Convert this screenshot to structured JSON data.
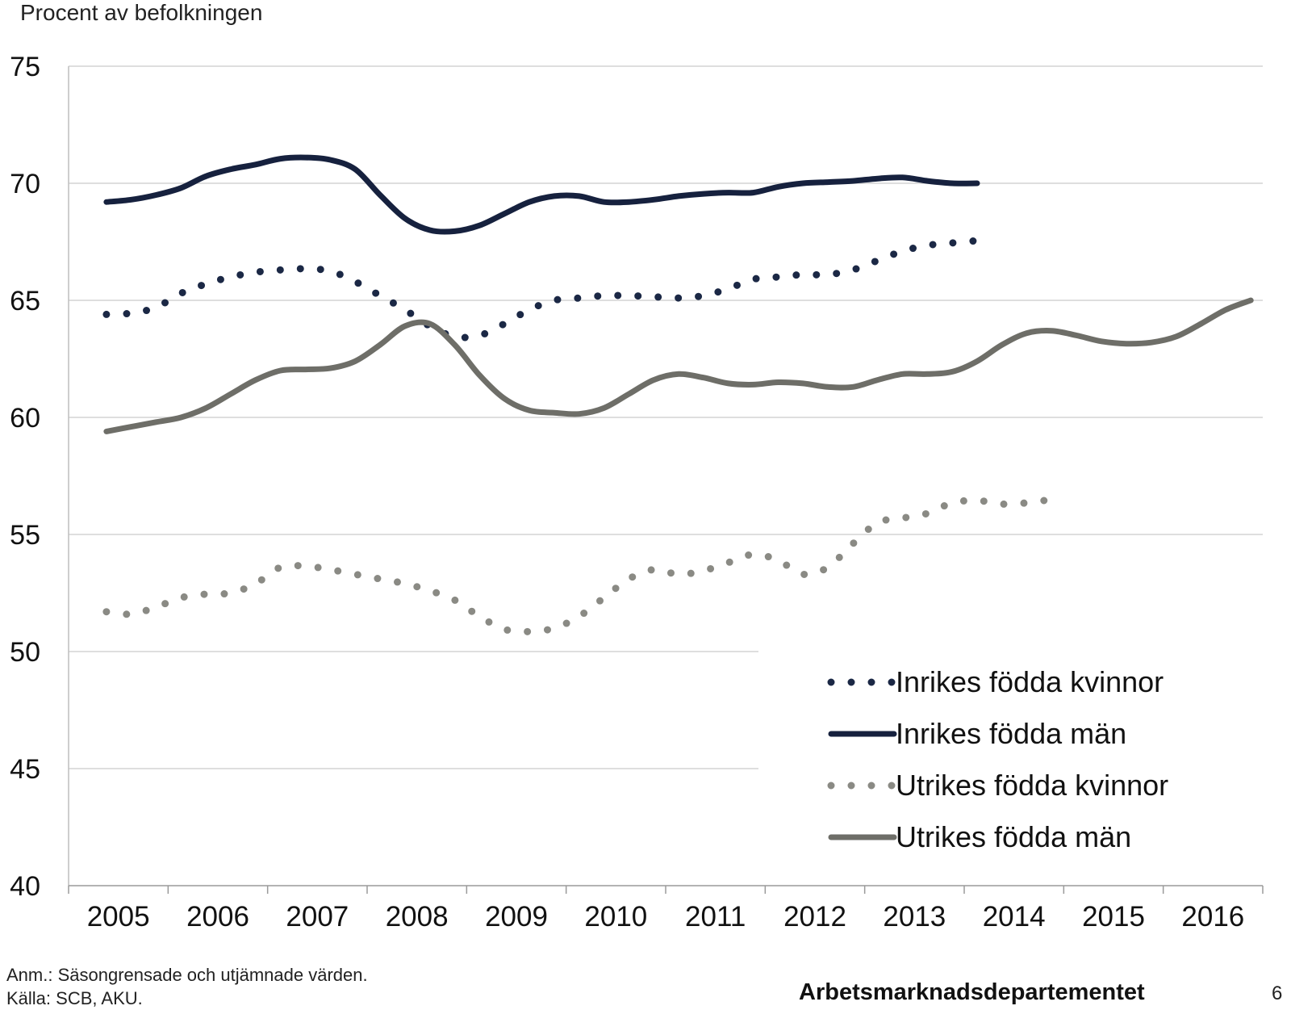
{
  "chart_data": {
    "type": "line",
    "title": "",
    "ylabel": "Procent av befolkningen",
    "xlabel": "",
    "ylim": [
      40,
      75
    ],
    "yticks": [
      40,
      45,
      50,
      55,
      60,
      65,
      70,
      75
    ],
    "xlim": [
      2004.5,
      2016.5
    ],
    "year_labels": [
      "2005",
      "2006",
      "2007",
      "2008",
      "2009",
      "2010",
      "2011",
      "2012",
      "2013",
      "2014",
      "2015",
      "2016"
    ],
    "grid": true,
    "legend_position": "bottom-right",
    "series": [
      {
        "name": "Inrikes födda kvinnor",
        "style": "dotted",
        "color": "#1b2845",
        "points": [
          [
            2004.88,
            64.4
          ],
          [
            2005.13,
            64.45
          ],
          [
            2005.38,
            64.7
          ],
          [
            2005.63,
            65.3
          ],
          [
            2005.88,
            65.7
          ],
          [
            2006.13,
            66.0
          ],
          [
            2006.38,
            66.2
          ],
          [
            2006.63,
            66.3
          ],
          [
            2006.88,
            66.35
          ],
          [
            2007.13,
            66.25
          ],
          [
            2007.38,
            65.8
          ],
          [
            2007.63,
            65.2
          ],
          [
            2007.88,
            64.6
          ],
          [
            2008.13,
            63.9
          ],
          [
            2008.38,
            63.45
          ],
          [
            2008.63,
            63.5
          ],
          [
            2008.88,
            64.0
          ],
          [
            2009.13,
            64.6
          ],
          [
            2009.38,
            65.0
          ],
          [
            2009.63,
            65.1
          ],
          [
            2009.88,
            65.2
          ],
          [
            2010.13,
            65.2
          ],
          [
            2010.38,
            65.15
          ],
          [
            2010.63,
            65.1
          ],
          [
            2010.88,
            65.2
          ],
          [
            2011.13,
            65.5
          ],
          [
            2011.38,
            65.9
          ],
          [
            2011.63,
            66.0
          ],
          [
            2011.88,
            66.1
          ],
          [
            2012.13,
            66.1
          ],
          [
            2012.38,
            66.3
          ],
          [
            2012.63,
            66.7
          ],
          [
            2012.88,
            67.1
          ],
          [
            2013.13,
            67.35
          ],
          [
            2013.38,
            67.45
          ],
          [
            2013.63,
            67.55
          ]
        ]
      },
      {
        "name": "Inrikes födda män",
        "style": "solid",
        "color": "#16213e",
        "points": [
          [
            2004.88,
            69.2
          ],
          [
            2005.13,
            69.3
          ],
          [
            2005.38,
            69.5
          ],
          [
            2005.63,
            69.8
          ],
          [
            2005.88,
            70.3
          ],
          [
            2006.13,
            70.6
          ],
          [
            2006.38,
            70.8
          ],
          [
            2006.63,
            71.05
          ],
          [
            2006.88,
            71.1
          ],
          [
            2007.13,
            71.0
          ],
          [
            2007.38,
            70.6
          ],
          [
            2007.63,
            69.5
          ],
          [
            2007.88,
            68.5
          ],
          [
            2008.13,
            68.0
          ],
          [
            2008.38,
            67.95
          ],
          [
            2008.63,
            68.2
          ],
          [
            2008.88,
            68.7
          ],
          [
            2009.13,
            69.2
          ],
          [
            2009.38,
            69.45
          ],
          [
            2009.63,
            69.45
          ],
          [
            2009.88,
            69.2
          ],
          [
            2010.13,
            69.2
          ],
          [
            2010.38,
            69.3
          ],
          [
            2010.63,
            69.45
          ],
          [
            2010.88,
            69.55
          ],
          [
            2011.13,
            69.6
          ],
          [
            2011.38,
            69.6
          ],
          [
            2011.63,
            69.85
          ],
          [
            2011.88,
            70.0
          ],
          [
            2012.13,
            70.05
          ],
          [
            2012.38,
            70.1
          ],
          [
            2012.63,
            70.2
          ],
          [
            2012.88,
            70.25
          ],
          [
            2013.13,
            70.1
          ],
          [
            2013.38,
            70.0
          ],
          [
            2013.63,
            70.0
          ]
        ]
      },
      {
        "name": "Utrikes födda kvinnor",
        "style": "dotted",
        "color": "#8a8a84",
        "points": [
          [
            2004.88,
            51.7
          ],
          [
            2005.13,
            51.6
          ],
          [
            2005.38,
            51.9
          ],
          [
            2005.63,
            52.3
          ],
          [
            2005.88,
            52.45
          ],
          [
            2006.13,
            52.5
          ],
          [
            2006.38,
            52.9
          ],
          [
            2006.63,
            53.6
          ],
          [
            2006.88,
            53.65
          ],
          [
            2007.13,
            53.5
          ],
          [
            2007.38,
            53.3
          ],
          [
            2007.63,
            53.1
          ],
          [
            2007.88,
            52.9
          ],
          [
            2008.13,
            52.6
          ],
          [
            2008.38,
            52.2
          ],
          [
            2008.63,
            51.5
          ],
          [
            2008.88,
            50.95
          ],
          [
            2009.13,
            50.85
          ],
          [
            2009.38,
            51.0
          ],
          [
            2009.63,
            51.5
          ],
          [
            2009.88,
            52.3
          ],
          [
            2010.13,
            53.1
          ],
          [
            2010.38,
            53.5
          ],
          [
            2010.63,
            53.3
          ],
          [
            2010.88,
            53.45
          ],
          [
            2011.13,
            53.8
          ],
          [
            2011.38,
            54.15
          ],
          [
            2011.63,
            53.9
          ],
          [
            2011.88,
            53.3
          ],
          [
            2012.13,
            53.6
          ],
          [
            2012.38,
            54.6
          ],
          [
            2012.63,
            55.5
          ],
          [
            2012.88,
            55.7
          ],
          [
            2013.13,
            55.9
          ],
          [
            2013.38,
            56.35
          ],
          [
            2013.63,
            56.45
          ],
          [
            2013.88,
            56.3
          ],
          [
            2014.13,
            56.35
          ],
          [
            2014.38,
            56.5
          ]
        ]
      },
      {
        "name": "Utrikes födda män",
        "style": "solid",
        "color": "#6e6e68",
        "points": [
          [
            2004.88,
            59.4
          ],
          [
            2005.13,
            59.6
          ],
          [
            2005.38,
            59.8
          ],
          [
            2005.63,
            60.0
          ],
          [
            2005.88,
            60.4
          ],
          [
            2006.13,
            61.0
          ],
          [
            2006.38,
            61.6
          ],
          [
            2006.63,
            62.0
          ],
          [
            2006.88,
            62.05
          ],
          [
            2007.13,
            62.1
          ],
          [
            2007.38,
            62.4
          ],
          [
            2007.63,
            63.1
          ],
          [
            2007.88,
            63.9
          ],
          [
            2008.13,
            64.0
          ],
          [
            2008.38,
            63.1
          ],
          [
            2008.63,
            61.8
          ],
          [
            2008.88,
            60.8
          ],
          [
            2009.13,
            60.3
          ],
          [
            2009.38,
            60.2
          ],
          [
            2009.63,
            60.15
          ],
          [
            2009.88,
            60.4
          ],
          [
            2010.13,
            61.0
          ],
          [
            2010.38,
            61.6
          ],
          [
            2010.63,
            61.85
          ],
          [
            2010.88,
            61.7
          ],
          [
            2011.13,
            61.45
          ],
          [
            2011.38,
            61.4
          ],
          [
            2011.63,
            61.5
          ],
          [
            2011.88,
            61.45
          ],
          [
            2012.13,
            61.3
          ],
          [
            2012.38,
            61.3
          ],
          [
            2012.63,
            61.6
          ],
          [
            2012.88,
            61.85
          ],
          [
            2013.13,
            61.85
          ],
          [
            2013.38,
            61.95
          ],
          [
            2013.63,
            62.4
          ],
          [
            2013.88,
            63.1
          ],
          [
            2014.13,
            63.6
          ],
          [
            2014.38,
            63.7
          ],
          [
            2014.63,
            63.5
          ],
          [
            2014.88,
            63.25
          ],
          [
            2015.13,
            63.15
          ],
          [
            2015.38,
            63.2
          ],
          [
            2015.63,
            63.45
          ],
          [
            2015.88,
            64.0
          ],
          [
            2016.13,
            64.6
          ],
          [
            2016.38,
            65.0
          ]
        ]
      }
    ]
  },
  "notes": {
    "anm": "Anm.: Säsongrensade och utjämnade värden.",
    "kalla": "Källa: SCB, AKU."
  },
  "footer": {
    "department": "Arbetsmarknadsdepartementet",
    "page_number": "6"
  }
}
